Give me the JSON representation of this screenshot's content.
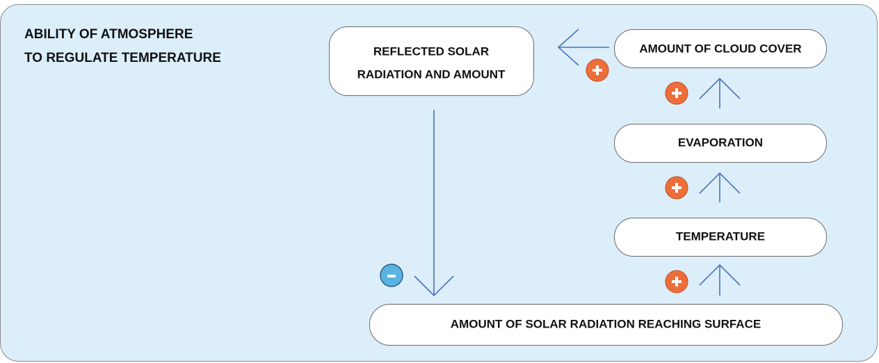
{
  "title": {
    "lines": [
      "ABILITY OF ATMOSPHERE",
      "TO REGULATE TEMPERATURE"
    ]
  },
  "nodes": [
    {
      "lines": [
        "REFLECTED SOLAR",
        "RADIATION AND AMOUNT"
      ]
    },
    {
      "lines": [
        "AMOUNT OF CLOUD COVER"
      ]
    },
    {
      "lines": [
        "EVAPORATION"
      ]
    },
    {
      "lines": [
        "TEMPERATURE"
      ]
    },
    {
      "lines": [
        "AMOUNT OF SOLAR RADIATION REACHING SURFACE"
      ]
    }
  ]
}
